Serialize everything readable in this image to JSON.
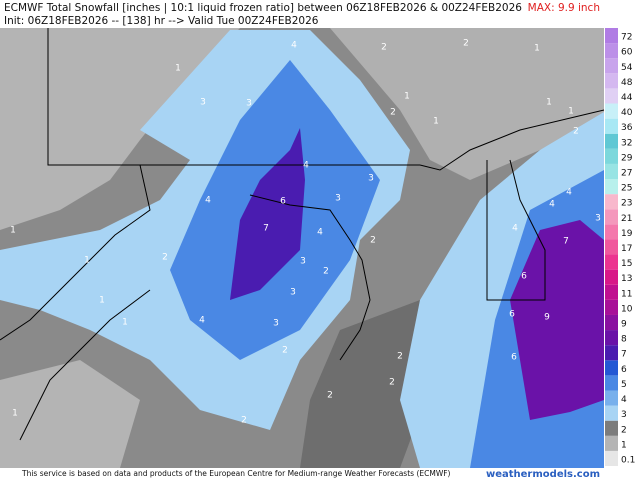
{
  "header": {
    "title": "ECMWF Total Snowfall [inches | 10:1 liquid frozen ratio] between 06Z18FEB2026 & 00Z24FEB2026",
    "subtitle": "Init: 06Z18FEB2026 -- [138] hr --> Valid Tue 00Z24FEB2026",
    "max": "MAX: 9.9 inch"
  },
  "colorbar": {
    "ticks": [
      0.1,
      1,
      2,
      3,
      4,
      5,
      6,
      7,
      8,
      9,
      10,
      11,
      13,
      15,
      17,
      19,
      21,
      23,
      25,
      27,
      29,
      32,
      36,
      40,
      44,
      48,
      54,
      60,
      72
    ],
    "colors": [
      "#e6e6e6",
      "#b4b4b4",
      "#7c7c7c",
      "#a8d4f4",
      "#78b0ec",
      "#4a88e4",
      "#2458d4",
      "#4a1cb0",
      "#6a12a8",
      "#8a10a0",
      "#a81098",
      "#c01090",
      "#d81888",
      "#ec3490",
      "#f0589c",
      "#f478ac",
      "#f498bc",
      "#f8b8cc",
      "#b8f0ec",
      "#98e4e4",
      "#7cd8dc",
      "#60c8d4",
      "#a8e8f4",
      "#c8f0f8",
      "#e0d0f4",
      "#d4b8f0",
      "#c8a4ec",
      "#bc90e8",
      "#b07ce4"
    ]
  },
  "map_labels": [
    "4",
    "1",
    "2",
    "2",
    "1",
    "3",
    "3",
    "1",
    "2",
    "1",
    "1",
    "1",
    "2",
    "4",
    "3",
    "6",
    "4",
    "3",
    "7",
    "4",
    "2",
    "3",
    "2",
    "3",
    "1",
    "1",
    "2",
    "4",
    "3",
    "2",
    "1",
    "1",
    "2",
    "1",
    "2",
    "4",
    "4",
    "4",
    "7",
    "6",
    "6",
    "9",
    "6",
    "3",
    "2",
    "2"
  ],
  "footer": {
    "credit": "This service is based on data and products of the European Centre for Medium-range Weather Forecasts (ECMWF)",
    "brand": "weathermodels.com"
  }
}
